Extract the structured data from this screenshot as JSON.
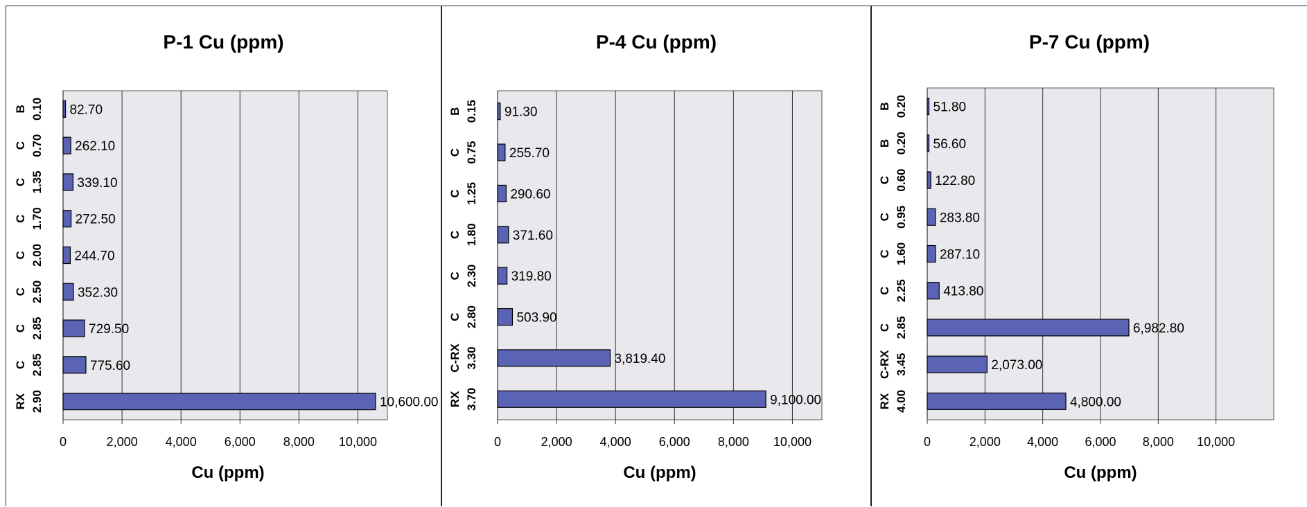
{
  "chart_data": [
    {
      "type": "bar",
      "orientation": "horizontal",
      "title": "P-1 Cu (ppm)",
      "xlabel": "Cu (ppm)",
      "xlim": [
        0,
        11000
      ],
      "xticks": [
        "0",
        "2,000",
        "4,000",
        "6,000",
        "8,000",
        "10,000"
      ],
      "categories": [
        {
          "type": "B",
          "depth": "0.10"
        },
        {
          "type": "C",
          "depth": "0.70"
        },
        {
          "type": "C",
          "depth": "1.35"
        },
        {
          "type": "C",
          "depth": "1.70"
        },
        {
          "type": "C",
          "depth": "2.00"
        },
        {
          "type": "C",
          "depth": "2.50"
        },
        {
          "type": "C",
          "depth": "2.85"
        },
        {
          "type": "C",
          "depth": "2.85"
        },
        {
          "type": "RX",
          "depth": "2.90"
        }
      ],
      "values": [
        82.7,
        262.1,
        339.1,
        272.5,
        244.7,
        352.3,
        729.5,
        775.6,
        10600.0
      ],
      "value_labels": [
        "82.70",
        "262.10",
        "339.10",
        "272.50",
        "244.70",
        "352.30",
        "729.50",
        "775.60",
        "10,600.00"
      ],
      "bar_color": "#5a63b4",
      "plot_bg": "#e9e9ed",
      "grid": true
    },
    {
      "type": "bar",
      "orientation": "horizontal",
      "title": "P-4 Cu (ppm)",
      "xlabel": "Cu (ppm)",
      "xlim": [
        0,
        11000
      ],
      "xticks": [
        "0",
        "2,000",
        "4,000",
        "6,000",
        "8,000",
        "10,000"
      ],
      "categories": [
        {
          "type": "B",
          "depth": "0.15"
        },
        {
          "type": "C",
          "depth": "0.75"
        },
        {
          "type": "C",
          "depth": "1.25"
        },
        {
          "type": "C",
          "depth": "1.80"
        },
        {
          "type": "C",
          "depth": "2.30"
        },
        {
          "type": "C",
          "depth": "2.80"
        },
        {
          "type": "C-RX",
          "depth": "3.30"
        },
        {
          "type": "RX",
          "depth": "3.70"
        }
      ],
      "values": [
        91.3,
        255.7,
        290.6,
        371.6,
        319.8,
        503.9,
        3819.4,
        9100.0
      ],
      "value_labels": [
        "91.30",
        "255.70",
        "290.60",
        "371.60",
        "319.80",
        "503.90",
        "3,819.40",
        "9,100.00"
      ],
      "bar_color": "#5a63b4",
      "plot_bg": "#e9e9ed",
      "grid": true
    },
    {
      "type": "bar",
      "orientation": "horizontal",
      "title": "P-7 Cu (ppm)",
      "xlabel": "Cu (ppm)",
      "xlim": [
        0,
        12000
      ],
      "xticks": [
        "0",
        "2,000",
        "4,000",
        "6,000",
        "8,000",
        "10,000"
      ],
      "categories": [
        {
          "type": "B",
          "depth": "0.20"
        },
        {
          "type": "B",
          "depth": "0.20"
        },
        {
          "type": "C",
          "depth": "0.60"
        },
        {
          "type": "C",
          "depth": "0.95"
        },
        {
          "type": "C",
          "depth": "1.60"
        },
        {
          "type": "C",
          "depth": "2.25"
        },
        {
          "type": "C",
          "depth": "2.85"
        },
        {
          "type": "C-RX",
          "depth": "3.45"
        },
        {
          "type": "RX",
          "depth": "4.00"
        }
      ],
      "values": [
        51.8,
        56.6,
        122.8,
        283.8,
        287.1,
        413.8,
        6982.8,
        2073.0,
        4800.0
      ],
      "value_labels": [
        "51.80",
        "56.60",
        "122.80",
        "283.80",
        "287.10",
        "413.80",
        "6,982.80",
        "2,073.00",
        "4,800.00"
      ],
      "bar_color": "#5a63b4",
      "plot_bg": "#e9e9ed",
      "grid": true
    }
  ]
}
